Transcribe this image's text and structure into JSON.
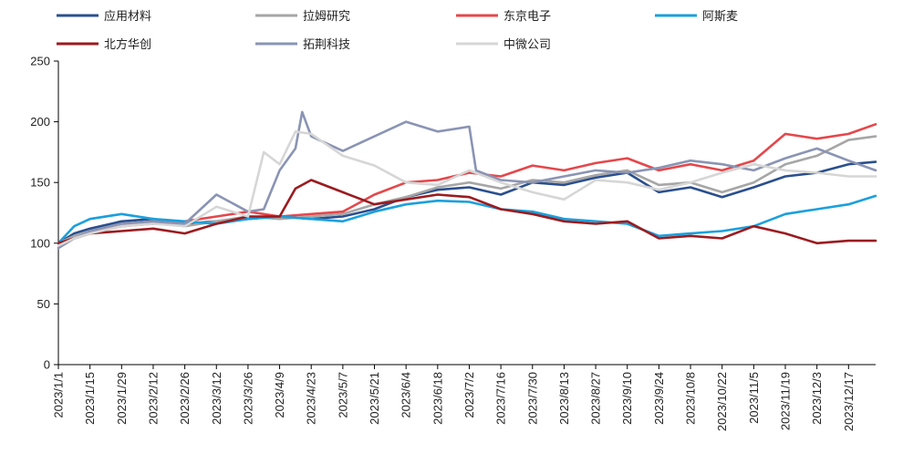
{
  "chart_data": {
    "type": "line",
    "title": "",
    "xlabel": "",
    "ylabel": "",
    "ylim": [
      0,
      250
    ],
    "yticks": [
      0,
      50,
      100,
      150,
      200,
      250
    ],
    "x_ticks": [
      "2023/1/1",
      "2023/1/15",
      "2023/1/29",
      "2023/2/12",
      "2023/2/26",
      "2023/3/12",
      "2023/3/26",
      "2023/4/9",
      "2023/4/23",
      "2023/5/7",
      "2023/5/21",
      "2023/6/4",
      "2023/6/18",
      "2023/7/2",
      "2023/7/16",
      "2023/7/30",
      "2023/8/13",
      "2023/8/27",
      "2023/9/10",
      "2023/9/24",
      "2023/10/8",
      "2023/10/22",
      "2023/11/5",
      "2023/11/19",
      "2023/12/3",
      "2023/12/17"
    ],
    "x_end": "2023/12/29",
    "legend_position": "top",
    "grid": false,
    "series": [
      {
        "name": "应用材料",
        "color": "#2a4f8e",
        "points": [
          [
            "2023/1/1",
            100
          ],
          [
            "2023/1/8",
            108
          ],
          [
            "2023/1/15",
            112
          ],
          [
            "2023/1/29",
            118
          ],
          [
            "2023/2/12",
            120
          ],
          [
            "2023/2/26",
            116
          ],
          [
            "2023/3/12",
            118
          ],
          [
            "2023/3/26",
            120
          ],
          [
            "2023/4/9",
            122
          ],
          [
            "2023/4/23",
            120
          ],
          [
            "2023/5/7",
            122
          ],
          [
            "2023/5/21",
            128
          ],
          [
            "2023/6/4",
            138
          ],
          [
            "2023/6/18",
            144
          ],
          [
            "2023/7/2",
            146
          ],
          [
            "2023/7/16",
            140
          ],
          [
            "2023/7/30",
            150
          ],
          [
            "2023/8/13",
            148
          ],
          [
            "2023/8/27",
            154
          ],
          [
            "2023/9/10",
            158
          ],
          [
            "2023/9/24",
            142
          ],
          [
            "2023/10/8",
            146
          ],
          [
            "2023/10/22",
            138
          ],
          [
            "2023/11/5",
            146
          ],
          [
            "2023/11/19",
            155
          ],
          [
            "2023/12/3",
            158
          ],
          [
            "2023/12/17",
            165
          ],
          [
            "2023/12/29",
            167
          ]
        ]
      },
      {
        "name": "拉姆研究",
        "color": "#a6a6a6",
        "points": [
          [
            "2023/1/1",
            100
          ],
          [
            "2023/1/8",
            106
          ],
          [
            "2023/1/15",
            110
          ],
          [
            "2023/1/29",
            116
          ],
          [
            "2023/2/12",
            118
          ],
          [
            "2023/2/26",
            114
          ],
          [
            "2023/3/12",
            118
          ],
          [
            "2023/3/26",
            122
          ],
          [
            "2023/4/9",
            120
          ],
          [
            "2023/4/23",
            122
          ],
          [
            "2023/5/7",
            124
          ],
          [
            "2023/5/21",
            132
          ],
          [
            "2023/6/4",
            138
          ],
          [
            "2023/6/18",
            146
          ],
          [
            "2023/7/2",
            150
          ],
          [
            "2023/7/16",
            145
          ],
          [
            "2023/7/30",
            152
          ],
          [
            "2023/8/13",
            150
          ],
          [
            "2023/8/27",
            156
          ],
          [
            "2023/9/10",
            160
          ],
          [
            "2023/9/24",
            148
          ],
          [
            "2023/10/8",
            150
          ],
          [
            "2023/10/22",
            142
          ],
          [
            "2023/11/5",
            150
          ],
          [
            "2023/11/19",
            165
          ],
          [
            "2023/12/3",
            172
          ],
          [
            "2023/12/17",
            185
          ],
          [
            "2023/12/29",
            188
          ]
        ]
      },
      {
        "name": "东京电子",
        "color": "#e5474b",
        "points": [
          [
            "2023/1/1",
            100
          ],
          [
            "2023/1/8",
            104
          ],
          [
            "2023/1/15",
            108
          ],
          [
            "2023/1/29",
            114
          ],
          [
            "2023/2/12",
            116
          ],
          [
            "2023/2/26",
            118
          ],
          [
            "2023/3/12",
            122
          ],
          [
            "2023/3/26",
            126
          ],
          [
            "2023/4/9",
            122
          ],
          [
            "2023/4/23",
            124
          ],
          [
            "2023/5/7",
            126
          ],
          [
            "2023/5/21",
            140
          ],
          [
            "2023/6/4",
            150
          ],
          [
            "2023/6/18",
            152
          ],
          [
            "2023/7/2",
            158
          ],
          [
            "2023/7/16",
            155
          ],
          [
            "2023/7/30",
            164
          ],
          [
            "2023/8/13",
            160
          ],
          [
            "2023/8/27",
            166
          ],
          [
            "2023/9/10",
            170
          ],
          [
            "2023/9/24",
            160
          ],
          [
            "2023/10/8",
            165
          ],
          [
            "2023/10/22",
            160
          ],
          [
            "2023/11/5",
            168
          ],
          [
            "2023/11/19",
            190
          ],
          [
            "2023/12/3",
            186
          ],
          [
            "2023/12/17",
            190
          ],
          [
            "2023/12/29",
            198
          ]
        ]
      },
      {
        "name": "阿斯麦",
        "color": "#1aa0dd",
        "points": [
          [
            "2023/1/1",
            100
          ],
          [
            "2023/1/8",
            114
          ],
          [
            "2023/1/15",
            120
          ],
          [
            "2023/1/29",
            124
          ],
          [
            "2023/2/12",
            120
          ],
          [
            "2023/2/26",
            118
          ],
          [
            "2023/3/12",
            116
          ],
          [
            "2023/3/26",
            120
          ],
          [
            "2023/4/9",
            122
          ],
          [
            "2023/4/23",
            120
          ],
          [
            "2023/5/7",
            118
          ],
          [
            "2023/5/21",
            126
          ],
          [
            "2023/6/4",
            132
          ],
          [
            "2023/6/18",
            135
          ],
          [
            "2023/7/2",
            134
          ],
          [
            "2023/7/16",
            128
          ],
          [
            "2023/7/30",
            126
          ],
          [
            "2023/8/13",
            120
          ],
          [
            "2023/8/27",
            118
          ],
          [
            "2023/9/10",
            116
          ],
          [
            "2023/9/24",
            106
          ],
          [
            "2023/10/8",
            108
          ],
          [
            "2023/10/22",
            110
          ],
          [
            "2023/11/5",
            114
          ],
          [
            "2023/11/19",
            124
          ],
          [
            "2023/12/3",
            128
          ],
          [
            "2023/12/17",
            132
          ],
          [
            "2023/12/29",
            139
          ]
        ]
      },
      {
        "name": "北方华创",
        "color": "#9b1b1f",
        "points": [
          [
            "2023/1/1",
            100
          ],
          [
            "2023/1/8",
            104
          ],
          [
            "2023/1/15",
            108
          ],
          [
            "2023/1/29",
            110
          ],
          [
            "2023/2/12",
            112
          ],
          [
            "2023/2/26",
            108
          ],
          [
            "2023/3/12",
            116
          ],
          [
            "2023/3/26",
            122
          ],
          [
            "2023/4/9",
            122
          ],
          [
            "2023/4/16",
            145
          ],
          [
            "2023/4/23",
            152
          ],
          [
            "2023/5/7",
            142
          ],
          [
            "2023/5/21",
            132
          ],
          [
            "2023/6/4",
            136
          ],
          [
            "2023/6/18",
            140
          ],
          [
            "2023/7/2",
            138
          ],
          [
            "2023/7/16",
            128
          ],
          [
            "2023/7/30",
            124
          ],
          [
            "2023/8/13",
            118
          ],
          [
            "2023/8/27",
            116
          ],
          [
            "2023/9/10",
            118
          ],
          [
            "2023/9/24",
            104
          ],
          [
            "2023/10/8",
            106
          ],
          [
            "2023/10/22",
            104
          ],
          [
            "2023/11/5",
            114
          ],
          [
            "2023/11/19",
            108
          ],
          [
            "2023/12/3",
            100
          ],
          [
            "2023/12/17",
            102
          ],
          [
            "2023/12/29",
            102
          ]
        ]
      },
      {
        "name": "拓荆科技",
        "color": "#8a94b4",
        "points": [
          [
            "2023/1/1",
            96
          ],
          [
            "2023/1/8",
            104
          ],
          [
            "2023/1/15",
            110
          ],
          [
            "2023/1/29",
            116
          ],
          [
            "2023/2/12",
            118
          ],
          [
            "2023/2/26",
            116
          ],
          [
            "2023/3/12",
            140
          ],
          [
            "2023/3/26",
            126
          ],
          [
            "2023/4/2",
            128
          ],
          [
            "2023/4/9",
            160
          ],
          [
            "2023/4/16",
            178
          ],
          [
            "2023/4/19",
            208
          ],
          [
            "2023/4/23",
            188
          ],
          [
            "2023/5/7",
            176
          ],
          [
            "2023/5/21",
            188
          ],
          [
            "2023/6/4",
            200
          ],
          [
            "2023/6/18",
            192
          ],
          [
            "2023/7/2",
            196
          ],
          [
            "2023/7/5",
            160
          ],
          [
            "2023/7/16",
            152
          ],
          [
            "2023/7/30",
            150
          ],
          [
            "2023/8/13",
            155
          ],
          [
            "2023/8/27",
            160
          ],
          [
            "2023/9/10",
            158
          ],
          [
            "2023/9/24",
            162
          ],
          [
            "2023/10/8",
            168
          ],
          [
            "2023/10/22",
            165
          ],
          [
            "2023/11/5",
            160
          ],
          [
            "2023/11/19",
            170
          ],
          [
            "2023/12/3",
            178
          ],
          [
            "2023/12/17",
            168
          ],
          [
            "2023/12/29",
            160
          ]
        ]
      },
      {
        "name": "中微公司",
        "color": "#d6d6d6",
        "points": [
          [
            "2023/1/1",
            98
          ],
          [
            "2023/1/8",
            104
          ],
          [
            "2023/1/15",
            108
          ],
          [
            "2023/1/29",
            114
          ],
          [
            "2023/2/12",
            116
          ],
          [
            "2023/2/26",
            114
          ],
          [
            "2023/3/12",
            130
          ],
          [
            "2023/3/26",
            122
          ],
          [
            "2023/4/2",
            175
          ],
          [
            "2023/4/9",
            165
          ],
          [
            "2023/4/16",
            192
          ],
          [
            "2023/4/23",
            190
          ],
          [
            "2023/5/7",
            172
          ],
          [
            "2023/5/21",
            164
          ],
          [
            "2023/6/4",
            150
          ],
          [
            "2023/6/18",
            148
          ],
          [
            "2023/7/2",
            160
          ],
          [
            "2023/7/16",
            150
          ],
          [
            "2023/7/30",
            142
          ],
          [
            "2023/8/13",
            136
          ],
          [
            "2023/8/27",
            152
          ],
          [
            "2023/9/10",
            150
          ],
          [
            "2023/9/24",
            144
          ],
          [
            "2023/10/8",
            150
          ],
          [
            "2023/10/22",
            158
          ],
          [
            "2023/11/5",
            165
          ],
          [
            "2023/11/19",
            160
          ],
          [
            "2023/12/3",
            158
          ],
          [
            "2023/12/17",
            155
          ],
          [
            "2023/12/29",
            155
          ]
        ]
      }
    ]
  }
}
